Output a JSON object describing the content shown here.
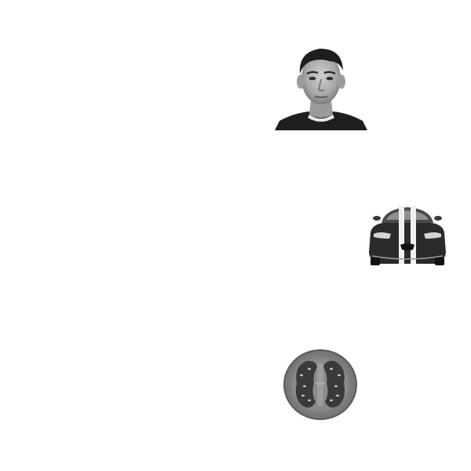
{
  "stimuli": [
    {
      "category": "face",
      "icon": "face-photo-icon",
      "tone": "grayscale"
    },
    {
      "category": "car",
      "icon": "car-photo-icon",
      "tone": "grayscale"
    },
    {
      "category": "tomato",
      "icon": "tomato-photo-icon",
      "tone": "grayscale"
    }
  ],
  "colors": {
    "background": "#ffffff",
    "dark": "#2a2a2a",
    "mid": "#7a7a7a",
    "light": "#d9d9d9"
  }
}
